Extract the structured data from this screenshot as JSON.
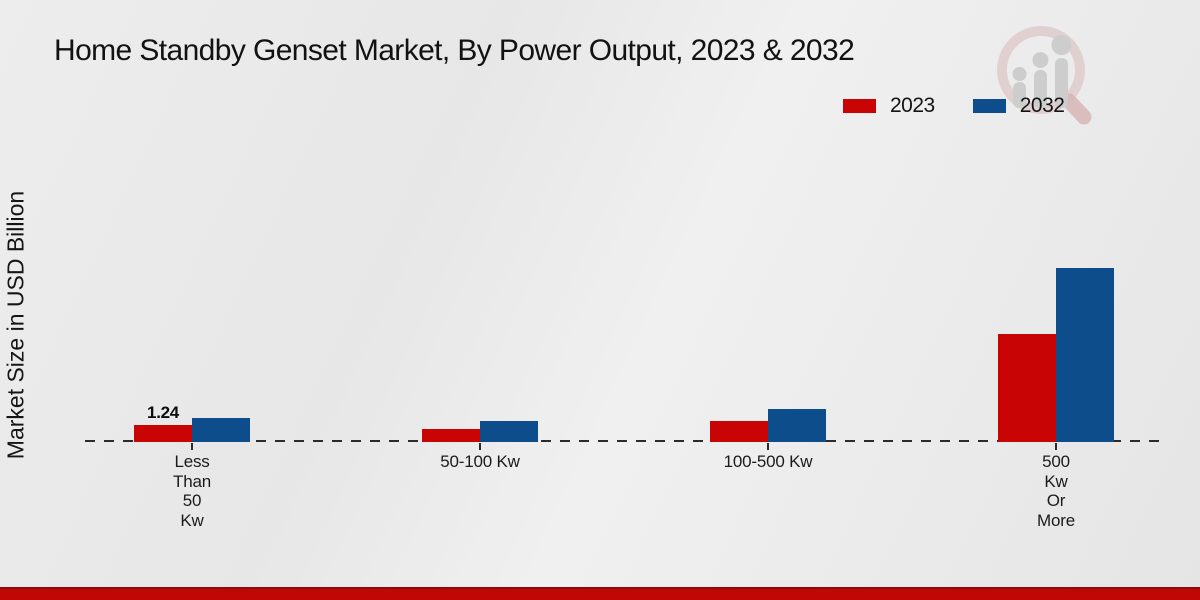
{
  "page": {
    "background_color": "#e9e9e9",
    "footer_accent_color": "#c10606",
    "watermark_icon": "magnifier-bar-chart-logo"
  },
  "legend": {
    "items": [
      {
        "label": "2023",
        "color": "#c80404"
      },
      {
        "label": "2032",
        "color": "#0d4d8c"
      }
    ]
  },
  "chart_data": {
    "type": "bar",
    "title": "Home Standby Genset Market, By Power Output, 2023 & 2032",
    "xlabel": "",
    "ylabel": "Market Size in USD Billion",
    "categories": [
      "Less Than 50 Kw",
      "50-100 Kw",
      "100-500 Kw",
      "500 Kw Or More"
    ],
    "category_lines": [
      [
        "Less",
        "Than",
        "50",
        "Kw"
      ],
      [
        "50-100 Kw"
      ],
      [
        "100-500 Kw"
      ],
      [
        "500",
        "Kw",
        "Or",
        "More"
      ]
    ],
    "series": [
      {
        "name": "2023",
        "color": "#c80404",
        "values": [
          1.24,
          0.95,
          1.53,
          7.88
        ]
      },
      {
        "name": "2032",
        "color": "#0d4d8c",
        "values": [
          1.75,
          1.53,
          2.41,
          12.62
        ]
      }
    ],
    "data_labels": [
      {
        "series": "2023",
        "category_index": 0,
        "text": "1.24"
      }
    ],
    "ylim": [
      0,
      13
    ],
    "grid": false,
    "axis_line_style": "dashed",
    "legend_position": "top-right"
  }
}
